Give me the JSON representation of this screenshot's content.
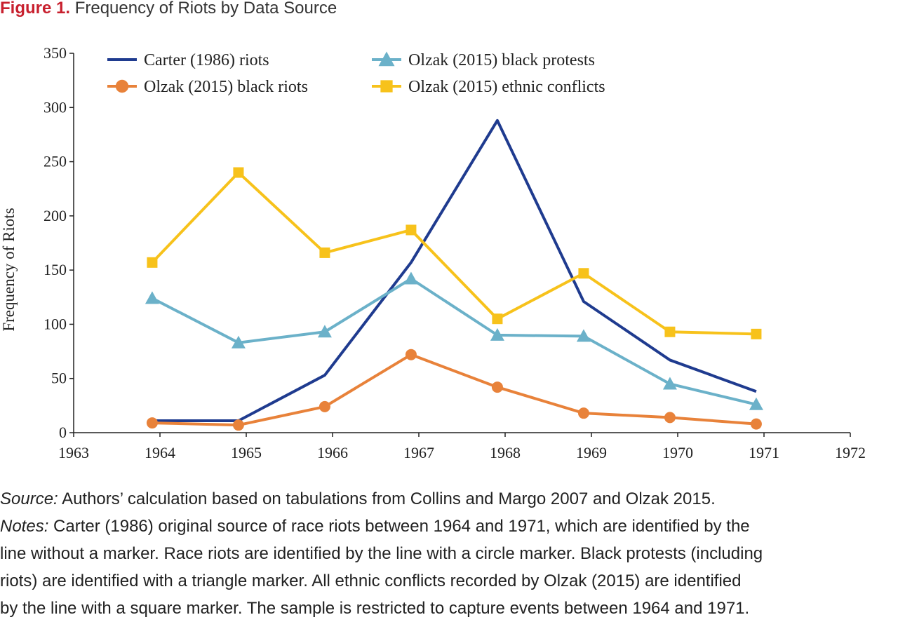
{
  "figure": {
    "label": "Figure 1.",
    "title": "Frequency of Riots by Data Source"
  },
  "notes": {
    "source_label": "Source:",
    "source_text": " Authors’ calculation based on tabulations from Collins and Margo 2007 and Olzak 2015.",
    "notes_label": "Notes:",
    "notes_lines": [
      " Carter (1986) original source of race riots between 1964 and 1971, which are identified by the",
      "line without a marker. Race riots are identified by the line with a circle marker. Black protests (including",
      "riots) are identified with a triangle marker. All ethnic conflicts recorded by Olzak (2015) are identified",
      "by the line with a square marker. The sample is restricted to capture events between 1964 and 1971."
    ]
  },
  "chart_data": {
    "type": "line",
    "title": "",
    "xlabel": "",
    "ylabel": "Frequency of Riots",
    "xlim": [
      1963,
      1972
    ],
    "ylim": [
      0,
      350
    ],
    "xticks": [
      1963,
      1964,
      1965,
      1966,
      1967,
      1968,
      1969,
      1970,
      1971,
      1972
    ],
    "yticks": [
      0,
      50,
      100,
      150,
      200,
      250,
      300,
      350
    ],
    "grid": false,
    "legend_position": "top",
    "x": [
      1964,
      1965,
      1966,
      1967,
      1968,
      1969,
      1970,
      1971
    ],
    "series": [
      {
        "name": "Carter (1986) riots",
        "marker": "none",
        "color": "#1f3b8f",
        "values": [
          11,
          11,
          53,
          157,
          288,
          121,
          67,
          38
        ]
      },
      {
        "name": "Olzak (2015) black riots",
        "marker": "circle",
        "color": "#e8823a",
        "values": [
          9,
          7,
          24,
          72,
          42,
          18,
          14,
          8
        ]
      },
      {
        "name": "Olzak (2015) black protests",
        "marker": "triangle",
        "color": "#6bb1c9",
        "values": [
          124,
          83,
          93,
          142,
          90,
          89,
          45,
          26
        ]
      },
      {
        "name": "Olzak (2015) ethnic conflicts",
        "marker": "square",
        "color": "#f7c21b",
        "values": [
          157,
          240,
          166,
          187,
          105,
          147,
          93,
          91
        ]
      }
    ]
  }
}
